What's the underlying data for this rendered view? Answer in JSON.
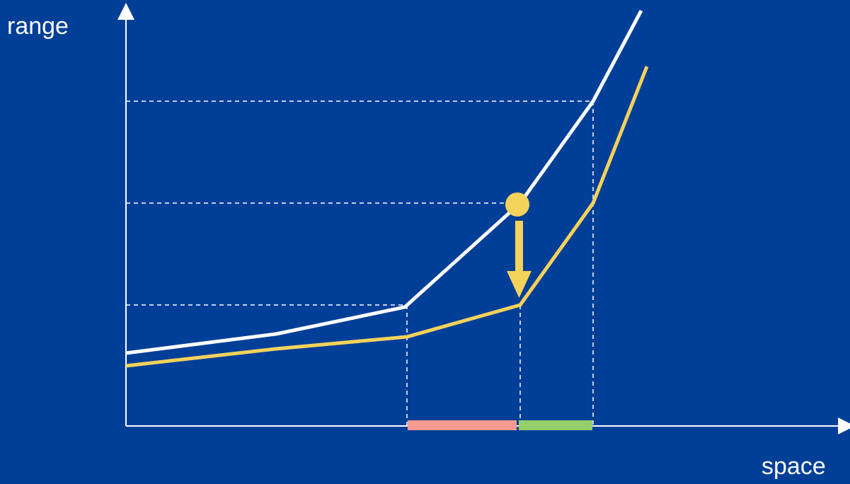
{
  "axes": {
    "y_label": "range",
    "x_label": "space"
  },
  "colors": {
    "background": "#003f98",
    "axis": "#ffffff",
    "upper_curve": "#ffffff",
    "lower_curve": "#f5d35a",
    "marker": "#f5d35a",
    "guide_lines": "#ffffff",
    "interval_left": "#f79a8f",
    "interval_right": "#95cf6c"
  },
  "diagram": {
    "curves": [
      "upper-curve",
      "lower-curve"
    ],
    "marker": "point-on-upper-curve",
    "arrow": "down-arrow-to-lower-curve",
    "intervals": [
      "interval-left",
      "interval-right"
    ]
  }
}
